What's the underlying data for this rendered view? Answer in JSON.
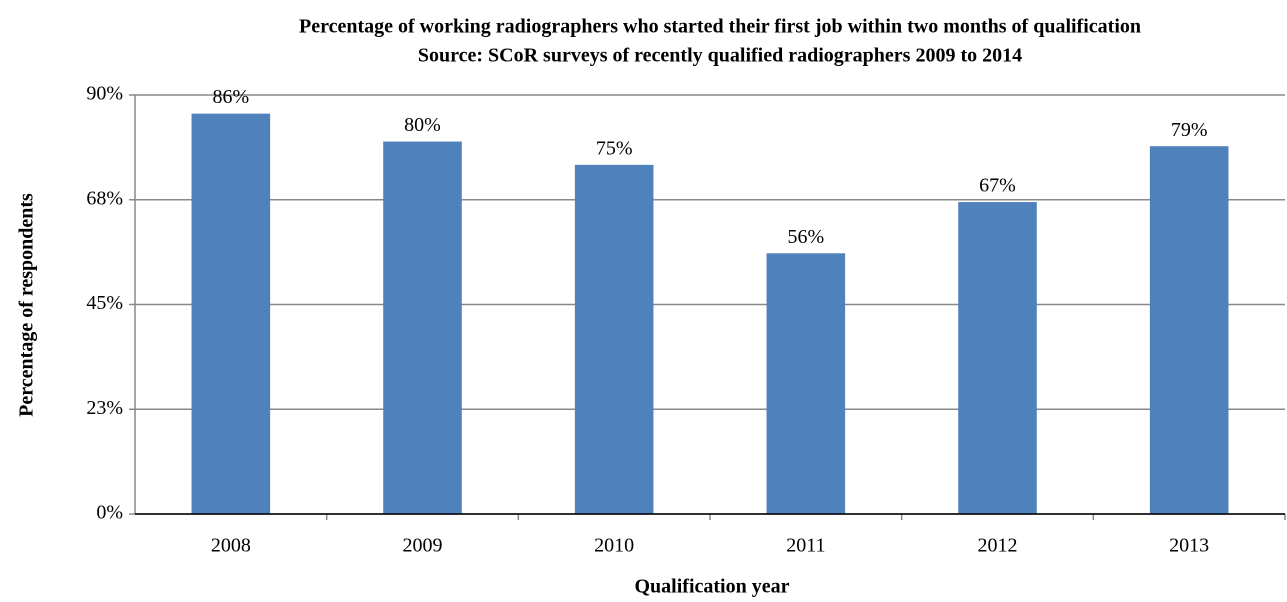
{
  "chart_data": {
    "type": "bar",
    "title": "Percentage of working radiographers who started their first job within two months of qualification",
    "subtitle": "Source: SCoR surveys of recently qualified radiographers 2009 to 2014",
    "x_label": "Qualification year",
    "y_label": "Percentage of respondents",
    "categories": [
      "2008",
      "2009",
      "2010",
      "2011",
      "2012",
      "2013"
    ],
    "values": [
      86,
      80,
      75,
      56,
      67,
      79
    ],
    "value_labels": [
      "86%",
      "80%",
      "75%",
      "56%",
      "67%",
      "79%"
    ],
    "color": "#4f81bd",
    "ylim": [
      0,
      90
    ],
    "yticks": [
      {
        "value": 0,
        "label": "0%"
      },
      {
        "value": 22.5,
        "label": "23%"
      },
      {
        "value": 45,
        "label": "45%"
      },
      {
        "value": 67.5,
        "label": "68%"
      },
      {
        "value": 90,
        "label": "90%"
      }
    ],
    "grid": true
  }
}
